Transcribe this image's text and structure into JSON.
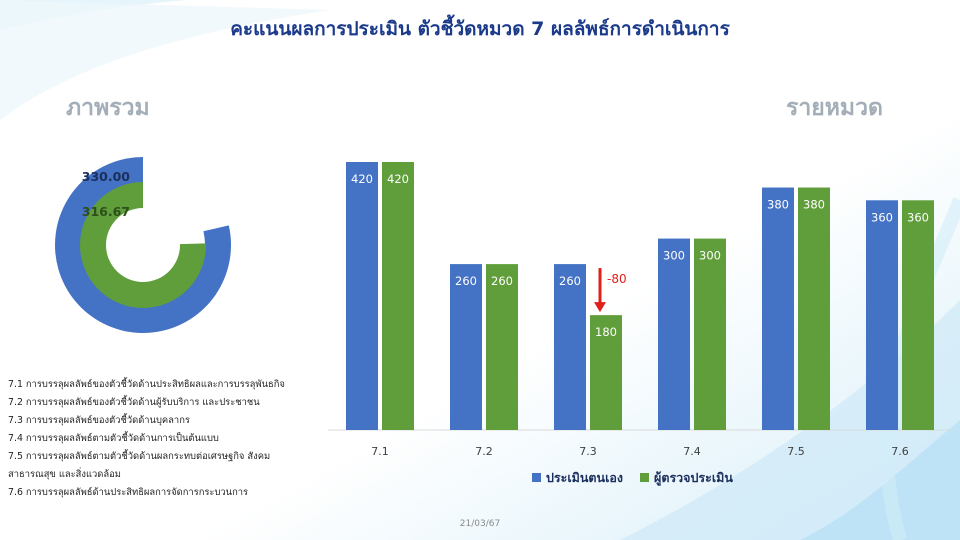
{
  "title": "คะแนนผลการประเมิน ตัวชี้วัดหมวด 7 ผลลัพธ์การดำเนินการ",
  "overall": {
    "heading": "ภาพรวม",
    "self_score": 330.0,
    "self_label": "330.00",
    "auditor_score": 316.67,
    "auditor_label": "316.67"
  },
  "category_heading": "รายหมวด",
  "indicator_list": [
    "7.1 การบรรลุผลลัพธ์ของตัวชี้วัดด้านประสิทธิผลและการบรรลุพันธกิจ",
    "7.2 การบรรลุผลลัพธ์ของตัวชี้วัดด้านผู้รับบริการ และประชาชน",
    "7.3 การบรรลุผลลัพธ์ของตัวชี้วัดด้านบุคลากร",
    "7.4 การบรรลุผลลัพธ์ตามตัวชี้วัดด้านการเป็นต้นแบบ",
    "7.5 การบรรลุผลลัพธ์ตามตัวชี้วัดด้านผลกระทบต่อเศรษฐกิจ สังคม",
    "สาธารณสุข และสิ่งแวดล้อม",
    "7.6 การบรรลุผลลัพธ์ด้านประสิทธิผลการจัดการกระบวนการ"
  ],
  "chart_data": [
    {
      "type": "pie",
      "values": [
        330.0,
        316.67
      ]
    },
    {
      "type": "bar",
      "categories": [
        "7.1",
        "7.2",
        "7.3",
        "7.4",
        "7.5",
        "7.6"
      ],
      "series": [
        {
          "name": "ประเมินตนเอง",
          "values": [
            420,
            260,
            260,
            300,
            380,
            360
          ],
          "color": "#4472c4"
        },
        {
          "name": "ผู้ตรวจประเมิน",
          "values": [
            420,
            260,
            180,
            300,
            380,
            360
          ],
          "color": "#5f9e3a"
        }
      ],
      "annotations": [
        {
          "category": "7.3",
          "text": "-80",
          "color": "#e0201b"
        }
      ],
      "ylim": [
        0,
        420
      ],
      "legend": "bottom"
    }
  ],
  "footer_date": "21/03/67"
}
